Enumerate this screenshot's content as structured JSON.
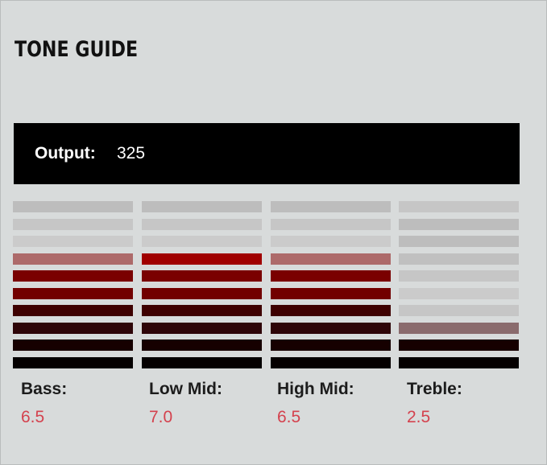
{
  "title": "TONE GUIDE",
  "output": {
    "label": "Output:",
    "value": "325"
  },
  "bands": [
    {
      "label": "Bass:",
      "value": "6.5",
      "segments": [
        "#bdbdbd",
        "#c6c6c6",
        "#cbcbcb",
        "#ad6a6a",
        "#7a0000",
        "#720000",
        "#3e0000",
        "#2e0508",
        "#160000",
        "#050000"
      ]
    },
    {
      "label": "Low Mid:",
      "value": "7.0",
      "segments": [
        "#bdbdbd",
        "#c6c6c6",
        "#cbcbcb",
        "#a00000",
        "#7a0000",
        "#720000",
        "#3e0000",
        "#2e0508",
        "#160000",
        "#050000"
      ]
    },
    {
      "label": "High Mid:",
      "value": "6.5",
      "segments": [
        "#bdbdbd",
        "#c6c6c6",
        "#cbcbcb",
        "#ad6a6a",
        "#7a0000",
        "#720000",
        "#3e0000",
        "#2e0508",
        "#160000",
        "#050000"
      ]
    },
    {
      "label": "Treble:",
      "value": "2.5",
      "segments": [
        "#c6c6c6",
        "#bdbdbd",
        "#bdbdbd",
        "#c0c0c0",
        "#c6c6c6",
        "#cbcbcb",
        "#c6c6c6",
        "#8a6b6d",
        "#160000",
        "#050000"
      ]
    }
  ],
  "colors": {
    "background": "#d8dbdb",
    "value_text": "#d4424e",
    "output_bar": "#000000"
  }
}
